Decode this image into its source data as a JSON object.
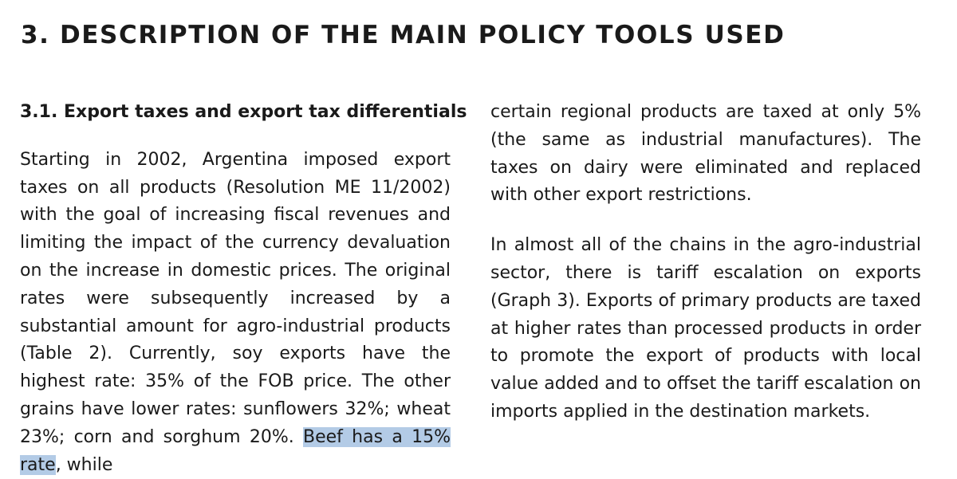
{
  "page": {
    "title": "3.  DESCRIPTION OF THE MAIN POLICY TOOLS USED"
  },
  "section": {
    "heading": "3.1. Export taxes and export tax differentials"
  },
  "left_column": {
    "paragraph_before_highlight": "Starting in 2002, Argentina imposed export taxes on all products (Resolution ME 11/2002) with the goal of increasing fiscal revenues and limiting the impact of the currency devaluation on the increase in domestic prices. The original rates were subsequently increased by a substantial amount for agro-industrial products (Table 2). Currently, soy exports have the highest rate: 35% of the FOB price. The other grains have lower rates: sunflowers 32%; wheat 23%; corn and sorghum 20%. ",
    "highlighted_text": "Beef has a 15% rate",
    "paragraph_after_highlight": ", while"
  },
  "right_column": {
    "paragraphs": [
      "certain regional products are taxed at only 5% (the same as industrial manufactures). The taxes on dairy were eliminated and replaced with other export restrictions.",
      "In almost all of the chains in the agro-industrial sector, there is tariff escalation on exports (Graph 3). Exports of primary products are taxed at higher rates than processed products in order to promote the export of products with local value added and to offset the tariff escalation on imports applied in the destination markets."
    ]
  },
  "colors": {
    "text": "#1a1a1a",
    "selection_highlight": "#b3cbe6",
    "background": "#ffffff"
  }
}
